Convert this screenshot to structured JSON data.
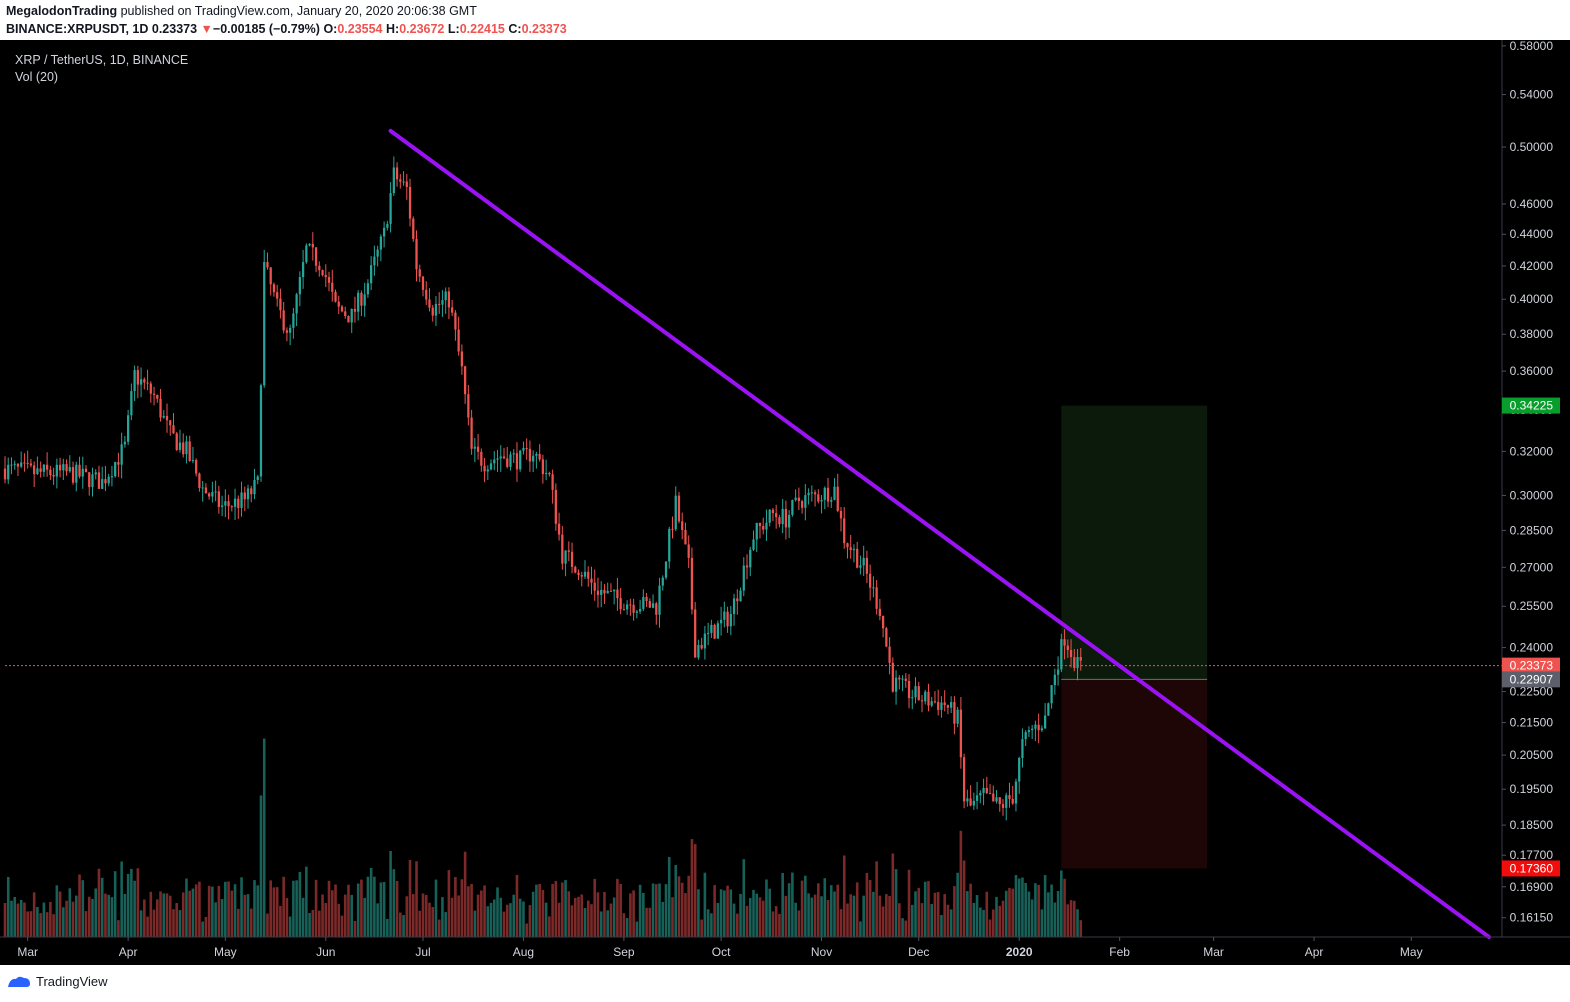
{
  "header": {
    "publisher": "MegalodonTrading",
    "published_text": "published on TradingView.com, January 20, 2020 20:06:38 GMT",
    "symbol": "BINANCE:XRPUSDT, 1D",
    "last": "0.23373",
    "change_arrow": "▼",
    "change": "−0.00185 (−0.79%)",
    "o_label": "O:",
    "o": "0.23554",
    "h_label": "H:",
    "h": "0.23672",
    "l_label": "L:",
    "l": "0.22415",
    "c_label": "C:",
    "c": "0.23373"
  },
  "legend": {
    "title": "XRP / TetherUS, 1D, BINANCE",
    "indicator": "Vol (20)"
  },
  "footer": {
    "brand": "TradingView"
  },
  "colors": {
    "background": "#000000",
    "up": "#26a69a",
    "down": "#ef5350",
    "trendline": "#9b12f5",
    "profit_zone": "#0b1a0b",
    "loss_zone": "#1f0606",
    "price_line": "#ef5350",
    "axis_text": "#d1d4dc"
  },
  "chart_data": {
    "type": "candlestick",
    "y_scale": "log",
    "ylim": [
      0.157,
      0.585
    ],
    "x_start": "2019-02-22",
    "x_end": "2020-05-29",
    "y_ticks": [
      "0.16150",
      "0.16900",
      "0.17700",
      "0.18500",
      "0.19500",
      "0.20500",
      "0.21500",
      "0.22500",
      "0.24000",
      "0.25500",
      "0.27000",
      "0.28500",
      "0.30000",
      "0.32000",
      "0.34000",
      "0.36000",
      "0.38000",
      "0.40000",
      "0.42000",
      "0.44000",
      "0.46000",
      "0.50000",
      "0.54000",
      "0.58000"
    ],
    "x_ticks": [
      {
        "date": "2019-03-01",
        "label": "Mar"
      },
      {
        "date": "2019-04-01",
        "label": "Apr"
      },
      {
        "date": "2019-05-01",
        "label": "May"
      },
      {
        "date": "2019-06-01",
        "label": "Jun"
      },
      {
        "date": "2019-07-01",
        "label": "Jul"
      },
      {
        "date": "2019-08-01",
        "label": "Aug"
      },
      {
        "date": "2019-09-01",
        "label": "Sep"
      },
      {
        "date": "2019-10-01",
        "label": "Oct"
      },
      {
        "date": "2019-11-01",
        "label": "Nov"
      },
      {
        "date": "2019-12-01",
        "label": "Dec"
      },
      {
        "date": "2020-01-01",
        "label": "2020"
      },
      {
        "date": "2020-02-01",
        "label": "Feb"
      },
      {
        "date": "2020-03-01",
        "label": "Mar"
      },
      {
        "date": "2020-04-01",
        "label": "Apr"
      },
      {
        "date": "2020-05-01",
        "label": "May"
      }
    ],
    "price_path": [
      [
        "2019-02-22",
        0.312
      ],
      [
        "2019-03-05",
        0.31
      ],
      [
        "2019-03-15",
        0.31
      ],
      [
        "2019-03-25",
        0.306
      ],
      [
        "2019-04-01",
        0.322
      ],
      [
        "2019-04-04",
        0.358
      ],
      [
        "2019-04-10",
        0.347
      ],
      [
        "2019-04-15",
        0.328
      ],
      [
        "2019-04-20",
        0.32
      ],
      [
        "2019-04-25",
        0.303
      ],
      [
        "2019-05-01",
        0.295
      ],
      [
        "2019-05-08",
        0.298
      ],
      [
        "2019-05-12",
        0.305
      ],
      [
        "2019-05-14",
        0.42
      ],
      [
        "2019-05-18",
        0.395
      ],
      [
        "2019-05-22",
        0.38
      ],
      [
        "2019-05-27",
        0.43
      ],
      [
        "2019-06-01",
        0.42
      ],
      [
        "2019-06-05",
        0.395
      ],
      [
        "2019-06-10",
        0.39
      ],
      [
        "2019-06-15",
        0.41
      ],
      [
        "2019-06-20",
        0.44
      ],
      [
        "2019-06-23",
        0.48
      ],
      [
        "2019-06-27",
        0.47
      ],
      [
        "2019-06-30",
        0.42
      ],
      [
        "2019-07-05",
        0.395
      ],
      [
        "2019-07-10",
        0.4
      ],
      [
        "2019-07-14",
        0.36
      ],
      [
        "2019-07-17",
        0.32
      ],
      [
        "2019-07-21",
        0.315
      ],
      [
        "2019-07-26",
        0.318
      ],
      [
        "2019-08-01",
        0.316
      ],
      [
        "2019-08-05",
        0.32
      ],
      [
        "2019-08-10",
        0.308
      ],
      [
        "2019-08-14",
        0.275
      ],
      [
        "2019-08-19",
        0.27
      ],
      [
        "2019-08-24",
        0.262
      ],
      [
        "2019-08-30",
        0.258
      ],
      [
        "2019-09-05",
        0.256
      ],
      [
        "2019-09-12",
        0.255
      ],
      [
        "2019-09-18",
        0.296
      ],
      [
        "2019-09-22",
        0.27
      ],
      [
        "2019-09-24",
        0.24
      ],
      [
        "2019-09-28",
        0.244
      ],
      [
        "2019-10-05",
        0.252
      ],
      [
        "2019-10-12",
        0.283
      ],
      [
        "2019-10-18",
        0.292
      ],
      [
        "2019-10-22",
        0.29
      ],
      [
        "2019-10-26",
        0.298
      ],
      [
        "2019-11-01",
        0.3
      ],
      [
        "2019-11-06",
        0.303
      ],
      [
        "2019-11-09",
        0.282
      ],
      [
        "2019-11-15",
        0.27
      ],
      [
        "2019-11-20",
        0.254
      ],
      [
        "2019-11-24",
        0.228
      ],
      [
        "2019-11-30",
        0.224
      ],
      [
        "2019-12-05",
        0.222
      ],
      [
        "2019-12-10",
        0.221
      ],
      [
        "2019-12-14",
        0.216
      ],
      [
        "2019-12-16",
        0.192
      ],
      [
        "2019-12-18",
        0.19
      ],
      [
        "2019-12-22",
        0.193
      ],
      [
        "2019-12-27",
        0.19
      ],
      [
        "2019-12-31",
        0.193
      ],
      [
        "2020-01-03",
        0.208
      ],
      [
        "2020-01-06",
        0.213
      ],
      [
        "2020-01-10",
        0.216
      ],
      [
        "2020-01-13",
        0.232
      ],
      [
        "2020-01-16",
        0.244
      ],
      [
        "2020-01-20",
        0.2337
      ]
    ],
    "trendline": {
      "from": [
        "2019-06-21",
        0.512
      ],
      "to": [
        "2020-05-25",
        0.157
      ]
    },
    "last_price": "0.23373",
    "position": {
      "x_from": "2020-01-14",
      "x_to": "2020-02-28",
      "target": "0.34225",
      "entry": "0.22907",
      "stop": "0.17360"
    }
  }
}
